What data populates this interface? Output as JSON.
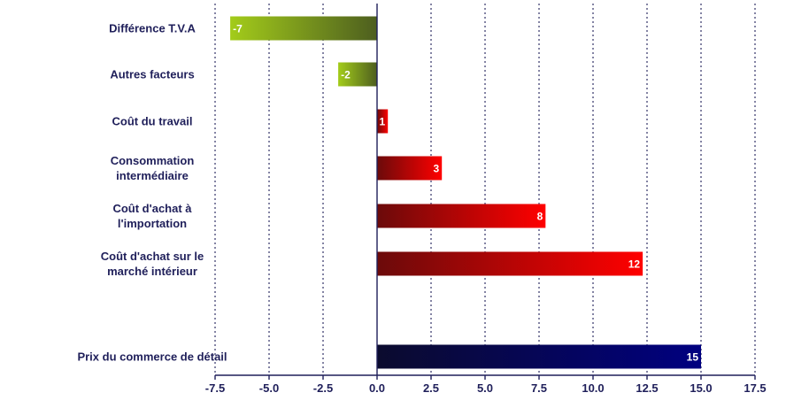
{
  "chart_data": {
    "type": "bar",
    "orientation": "horizontal",
    "categories": [
      [
        "Différence T.V.A"
      ],
      [
        "Autres facteurs"
      ],
      [
        "Coût du travail"
      ],
      [
        "Consommation",
        "intermédiaire"
      ],
      [
        "Coût d'achat à",
        "l'importation"
      ],
      [
        "Coût d'achat sur le",
        "marché intérieur"
      ],
      [
        "Prix du commerce de détail"
      ]
    ],
    "values": [
      -6.8,
      -1.8,
      0.5,
      3.0,
      7.8,
      12.3,
      15.0
    ],
    "value_labels": [
      "-7",
      "-2",
      "1",
      "3",
      "8",
      "12",
      "15"
    ],
    "xlim": [
      -7.5,
      17.5
    ],
    "xticks": [
      "-7.5",
      "-5.0",
      "-2.5",
      "0.0",
      "2.5",
      "5.0",
      "7.5",
      "10.0",
      "12.5",
      "15.0",
      "17.5"
    ],
    "grid": true,
    "xlabel": "",
    "ylabel": "",
    "colors": {
      "negative_light": "#a3cc1a",
      "negative_dark": "#4d5e1f",
      "positive_dark": "#6b0a0a",
      "positive_light": "#ff0000",
      "total_dark": "#0b0b2e",
      "total_light": "#000080",
      "axis": "#1f1f5a"
    }
  }
}
